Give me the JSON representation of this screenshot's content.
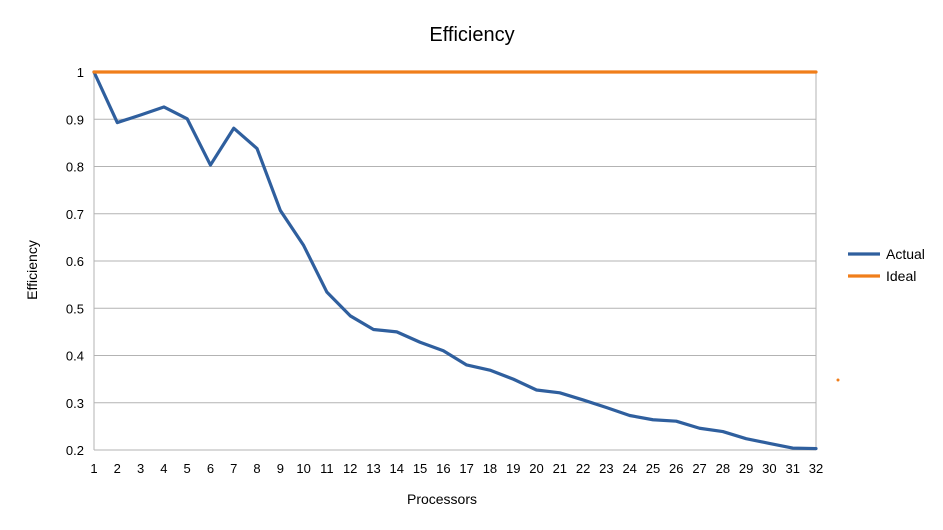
{
  "chart_data": {
    "type": "line",
    "title": "Efficiency",
    "xlabel": "Processors",
    "ylabel": "Efficiency",
    "x": [
      1,
      2,
      3,
      4,
      5,
      6,
      7,
      8,
      9,
      10,
      11,
      12,
      13,
      14,
      15,
      16,
      17,
      18,
      19,
      20,
      21,
      22,
      23,
      24,
      25,
      26,
      27,
      28,
      29,
      30,
      31,
      32
    ],
    "ylim": [
      0.2,
      1.0
    ],
    "yticks": [
      "0.2",
      "0.3",
      "0.4",
      "0.5",
      "0.6",
      "0.7",
      "0.8",
      "0.9",
      "1"
    ],
    "grid": true,
    "legend_position": "right",
    "series": [
      {
        "name": "Actual",
        "color": "#2f5f9e",
        "values": [
          1.0,
          0.893,
          0.909,
          0.926,
          0.901,
          0.803,
          0.881,
          0.838,
          0.707,
          0.633,
          0.534,
          0.484,
          0.455,
          0.45,
          0.428,
          0.41,
          0.38,
          0.369,
          0.35,
          0.327,
          0.321,
          0.306,
          0.29,
          0.273,
          0.264,
          0.261,
          0.246,
          0.239,
          0.224,
          0.214,
          0.204,
          0.203
        ]
      },
      {
        "name": "Ideal",
        "color": "#f07e1a",
        "values": [
          1,
          1,
          1,
          1,
          1,
          1,
          1,
          1,
          1,
          1,
          1,
          1,
          1,
          1,
          1,
          1,
          1,
          1,
          1,
          1,
          1,
          1,
          1,
          1,
          1,
          1,
          1,
          1,
          1,
          1,
          1,
          1
        ]
      }
    ]
  }
}
